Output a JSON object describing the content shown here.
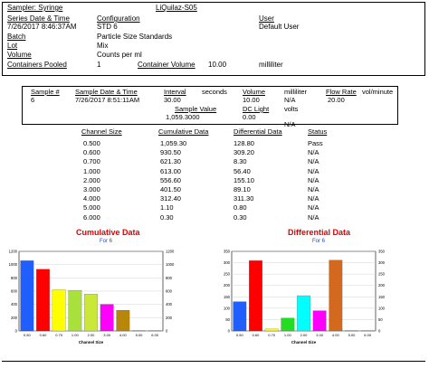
{
  "header": {
    "sampler": "Sampler: Syringe",
    "instrument": "LiQuilaz-S05",
    "series_label": "Series Date & Time",
    "series_value": "7/26/2017  8:46:37AM",
    "config_label": "Configuration",
    "config_value": "STD 6",
    "user_label": "User",
    "user_value": "Default User",
    "batch_label": "Batch",
    "batch_value": "Particle Size Standards",
    "lot_label": "Lot",
    "lot_value": "Mix",
    "volume_label": "Volume",
    "volume_value": "Counts per ml",
    "pooled_label": "Containers Pooled",
    "pooled_value": "1",
    "container_volume_label": "Container Volume",
    "container_volume_value": "10.00",
    "container_volume_unit": "milliliter"
  },
  "sample": {
    "sample_num_label": "Sample #",
    "sample_num_value": "6",
    "date_label": "Sample Date & Time",
    "date_value": "7/26/2017  8:51:11AM",
    "interval_label": "Interval",
    "interval_value": "30.00",
    "interval_unit": "seconds",
    "volume_label": "Volume",
    "volume_value": "10.00",
    "volume_unit": "milliliter",
    "flow_label": "Flow Rate",
    "flow_value": "20.00",
    "flow_unit": "vol/minute",
    "sample_value_label": "Sample Value",
    "sample_value": "1,059.3000",
    "dc_label": "DC Light",
    "dc_value": "0.00",
    "dc_unit": "volts",
    "na1": "N/A",
    "na2": "N/A"
  },
  "table": {
    "headers": [
      "Channel Size",
      "Cumulative Data",
      "Differential Data",
      "Status"
    ],
    "rows": [
      [
        "0.500",
        "1,059.30",
        "128.80",
        "Pass"
      ],
      [
        "0.600",
        "930.50",
        "309.20",
        "N/A"
      ],
      [
        "0.700",
        "621.30",
        "8.30",
        "N/A"
      ],
      [
        "1.000",
        "613.00",
        "56.40",
        "N/A"
      ],
      [
        "2.000",
        "556.60",
        "155.10",
        "N/A"
      ],
      [
        "3.000",
        "401.50",
        "89.10",
        "N/A"
      ],
      [
        "4.000",
        "312.40",
        "311.30",
        "N/A"
      ],
      [
        "5.000",
        "1.10",
        "0.80",
        "N/A"
      ],
      [
        "6.000",
        "0.30",
        "0.30",
        "N/A"
      ]
    ]
  },
  "chart_data": [
    {
      "type": "bar",
      "title": "Cumulative Data",
      "subtitle": "For 6",
      "xlabel": "Channel Size",
      "categories": [
        "0.50",
        "0.60",
        "0.70",
        "1.00",
        "2.00",
        "3.00",
        "4.00",
        "5.00",
        "6.00"
      ],
      "values": [
        1059.3,
        930.5,
        621.3,
        613.0,
        556.6,
        401.5,
        312.4,
        1.1,
        0.3
      ],
      "colors": [
        "#1f5fff",
        "#ff0000",
        "#ffff00",
        "#a8e03c",
        "#c9e83a",
        "#ff00ff",
        "#b8860b",
        "#8b4513",
        "#808080"
      ],
      "ylim": [
        0,
        1200
      ],
      "yticks": [
        "0",
        "200",
        "400",
        "600",
        "800",
        "1000",
        "1200"
      ],
      "grid": true
    },
    {
      "type": "bar",
      "title": "Differential Data",
      "subtitle": "For 6",
      "xlabel": "Channel Size",
      "categories": [
        "0.50",
        "0.60",
        "0.70",
        "1.00",
        "2.00",
        "3.00",
        "4.00",
        "5.00",
        "6.00"
      ],
      "values": [
        128.8,
        309.2,
        8.3,
        56.4,
        155.1,
        89.1,
        311.3,
        0.8,
        0.3
      ],
      "colors": [
        "#1f5fff",
        "#ff0000",
        "#ffff00",
        "#22dd22",
        "#00ffff",
        "#ff00ff",
        "#d2691e",
        "#8b4513",
        "#808080"
      ],
      "ylim": [
        0,
        350
      ],
      "yticks": [
        "0",
        "50",
        "100",
        "150",
        "200",
        "250",
        "300",
        "350"
      ],
      "grid": true
    }
  ]
}
